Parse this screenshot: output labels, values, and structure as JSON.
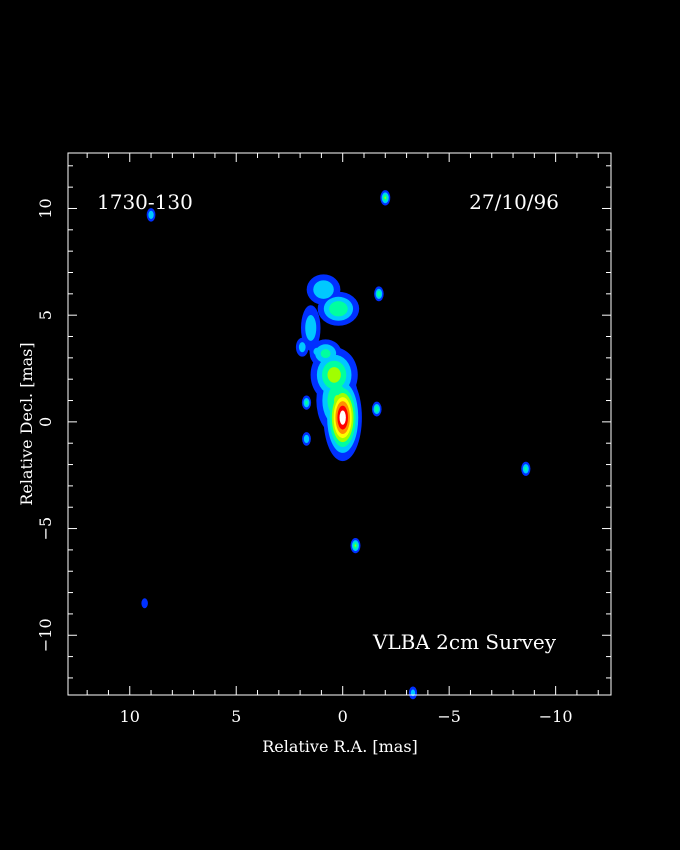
{
  "chart_data": {
    "type": "heatmap",
    "source_name": "1730-130",
    "date": "27/10/96",
    "survey": "VLBA 2cm Survey",
    "xlabel": "Relative R.A. [mas]",
    "ylabel": "Relative Decl. [mas]",
    "xlim": [
      12.9,
      -12.6
    ],
    "ylim": [
      -12.8,
      12.6
    ],
    "x_ticks": [
      10,
      5,
      0,
      -5,
      -10
    ],
    "y_ticks": [
      10,
      5,
      0,
      -5,
      -10
    ],
    "x_tick_labels": [
      "10",
      "5",
      "0",
      "−5",
      "−10"
    ],
    "y_tick_labels": [
      "10",
      "5",
      "0",
      "−5",
      "−10"
    ],
    "colormap": [
      "#0030ff",
      "#00c8ff",
      "#00ffa0",
      "#a0ff00",
      "#ffff00",
      "#ff9000",
      "#ff0000",
      "#ffffff"
    ],
    "components": [
      {
        "x": 0.0,
        "y": 0.2,
        "sx": 0.42,
        "sy": 0.95,
        "peak": 1.0
      },
      {
        "x": 0.4,
        "y": 2.2,
        "sx": 0.6,
        "sy": 0.7,
        "peak": 0.55
      },
      {
        "x": 0.8,
        "y": 3.2,
        "sx": 0.45,
        "sy": 0.4,
        "peak": 0.4
      },
      {
        "x": 0.25,
        "y": 1.0,
        "sx": 0.55,
        "sy": 0.9,
        "peak": 0.5
      },
      {
        "x": 0.2,
        "y": 5.3,
        "sx": 0.55,
        "sy": 0.45,
        "peak": 0.48
      },
      {
        "x": 0.9,
        "y": 6.2,
        "sx": 0.5,
        "sy": 0.45,
        "peak": 0.35
      },
      {
        "x": 1.5,
        "y": 4.4,
        "sx": 0.3,
        "sy": 0.7,
        "peak": 0.32
      },
      {
        "x": 1.9,
        "y": 3.5,
        "sx": 0.2,
        "sy": 0.3,
        "peak": 0.3
      },
      {
        "x": 1.2,
        "y": 3.3,
        "sx": 0.25,
        "sy": 0.25,
        "peak": 0.28
      }
    ],
    "noise_spots": [
      {
        "x": -0.6,
        "y": -5.8,
        "peak": 0.5
      },
      {
        "x": -2.0,
        "y": 10.5,
        "peak": 0.5
      },
      {
        "x": -1.7,
        "y": 6.0,
        "peak": 0.45
      },
      {
        "x": -1.6,
        "y": 0.6,
        "peak": 0.45
      },
      {
        "x": 1.7,
        "y": 0.9,
        "peak": 0.4
      },
      {
        "x": 1.7,
        "y": -0.8,
        "peak": 0.35
      },
      {
        "x": -8.6,
        "y": -2.2,
        "peak": 0.4
      },
      {
        "x": 9.0,
        "y": 9.7,
        "peak": 0.35
      },
      {
        "x": -3.3,
        "y": -12.7,
        "peak": 0.3
      },
      {
        "x": 9.3,
        "y": -8.5,
        "peak": 0.2
      }
    ]
  }
}
